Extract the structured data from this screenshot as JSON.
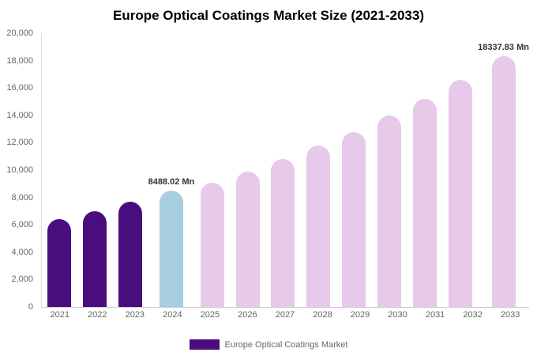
{
  "chart_data": {
    "type": "bar",
    "title": "Europe Optical Coatings Market Size (2021-2033)",
    "categories": [
      "2021",
      "2022",
      "2023",
      "2024",
      "2025",
      "2026",
      "2027",
      "2028",
      "2029",
      "2030",
      "2031",
      "2032",
      "2033"
    ],
    "values": [
      6400,
      7000,
      7700,
      8488.02,
      9100,
      9900,
      10800,
      11800,
      12800,
      14000,
      15200,
      16600,
      18337.83
    ],
    "xlabel": "",
    "ylabel": "",
    "ylim": [
      0,
      20000
    ],
    "grid": false,
    "legend": "Europe Optical Coatings Market",
    "legend_position": "bottom",
    "y_ticks": [
      {
        "value": 0,
        "label": "0"
      },
      {
        "value": 2000,
        "label": "2,000"
      },
      {
        "value": 4000,
        "label": "4,000"
      },
      {
        "value": 6000,
        "label": "6,000"
      },
      {
        "value": 8000,
        "label": "8,000"
      },
      {
        "value": 10000,
        "label": "10,000"
      },
      {
        "value": 12000,
        "label": "12,000"
      },
      {
        "value": 14000,
        "label": "14,000"
      },
      {
        "value": 16000,
        "label": "16,000"
      },
      {
        "value": 18000,
        "label": "18,000"
      },
      {
        "value": 20000,
        "label": "20,000"
      }
    ],
    "bar_colors": [
      "#4a0d7e",
      "#4a0d7e",
      "#4a0d7e",
      "#a6cde0",
      "#e7c9ea",
      "#e7c9ea",
      "#e7c9ea",
      "#e7c9ea",
      "#e7c9ea",
      "#e7c9ea",
      "#e7c9ea",
      "#e7c9ea",
      "#e7c9ea"
    ],
    "colors": {
      "historical": "#4a0d7e",
      "highlight": "#a6cde0",
      "forecast": "#e7c9ea",
      "legend_swatch": "#4a0d7e",
      "axis_text": "#666666",
      "annotation_text": "#333333"
    },
    "annotations": [
      {
        "index": 3,
        "text": "8488.02 Mn"
      },
      {
        "index": 12,
        "text": "18337.83 Mn"
      }
    ]
  }
}
